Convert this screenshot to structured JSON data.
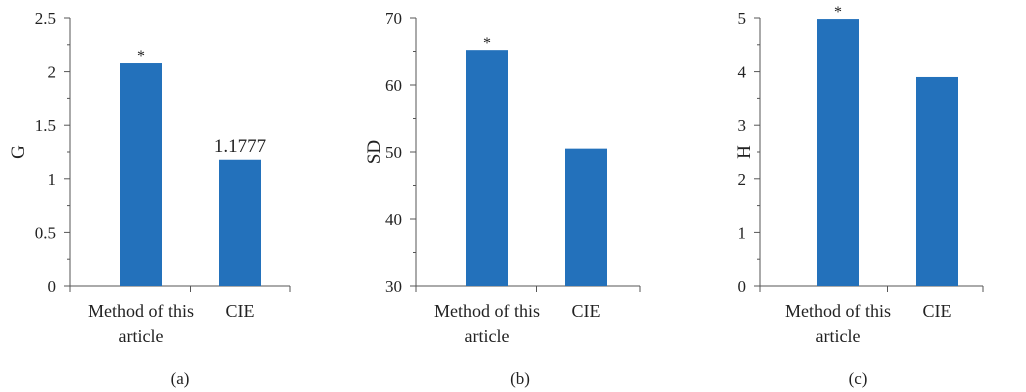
{
  "colors": {
    "bar": "#2371bb",
    "axis": "#555555",
    "text": "#222222"
  },
  "chart_data": [
    {
      "type": "bar",
      "panel_label": "(a)",
      "ylabel": "G",
      "xlabel": "",
      "categories": [
        "Method of this article",
        "CIE"
      ],
      "category_lines": [
        [
          "Method of this"
        ],
        [
          "CIE"
        ]
      ],
      "category_lines_extra": [
        [
          "article"
        ],
        []
      ],
      "values": [
        2.08,
        1.1777
      ],
      "ylim": [
        0,
        2.5
      ],
      "yticks": [
        0,
        0.5,
        1,
        1.5,
        2,
        2.5
      ],
      "ytick_labels": [
        "0",
        "0.5",
        "1",
        "1.5",
        "2",
        "2.5"
      ],
      "data_labels": [
        "*",
        "1.1777"
      ],
      "grid": false
    },
    {
      "type": "bar",
      "panel_label": "(b)",
      "ylabel": "SD",
      "xlabel": "",
      "categories": [
        "Method of this article",
        "CIE"
      ],
      "category_lines": [
        [
          "Method of this"
        ],
        [
          "CIE"
        ]
      ],
      "category_lines_extra": [
        [
          "article"
        ],
        []
      ],
      "values": [
        65.2,
        50.5
      ],
      "ylim": [
        30,
        70
      ],
      "yticks": [
        30,
        40,
        50,
        60,
        70
      ],
      "ytick_labels": [
        "30",
        "40",
        "50",
        "60",
        "70"
      ],
      "data_labels": [
        "*",
        ""
      ],
      "grid": false
    },
    {
      "type": "bar",
      "panel_label": "(c)",
      "ylabel": "H",
      "xlabel": "",
      "categories": [
        "Method of this article",
        "CIE"
      ],
      "category_lines": [
        [
          "Method of this"
        ],
        [
          "CIE"
        ]
      ],
      "category_lines_extra": [
        [
          "article"
        ],
        []
      ],
      "values": [
        4.98,
        3.9
      ],
      "ylim": [
        0,
        5
      ],
      "yticks": [
        0,
        1,
        2,
        3,
        4,
        5
      ],
      "ytick_labels": [
        "0",
        "1",
        "2",
        "3",
        "4",
        "5"
      ],
      "data_labels": [
        "*",
        ""
      ],
      "grid": false
    }
  ]
}
